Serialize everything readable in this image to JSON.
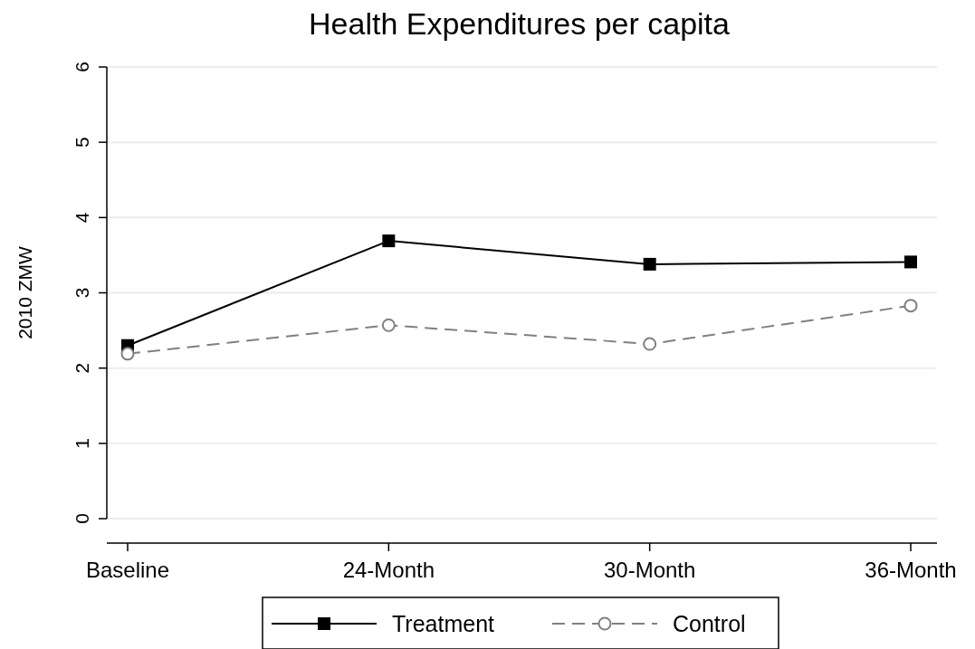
{
  "chart_data": {
    "type": "line",
    "title": "Health Expenditures per capita",
    "ylabel": "2010 ZMW",
    "categories": [
      "Baseline",
      "24-Month",
      "30-Month",
      "36-Month"
    ],
    "ylim": [
      0,
      6
    ],
    "yticks": [
      0,
      1,
      2,
      3,
      4,
      5,
      6
    ],
    "grid": "y",
    "legend": "bottom",
    "series": [
      {
        "name": "Treatment",
        "color": "#000000",
        "values": [
          2.3,
          3.69,
          3.38,
          3.41
        ],
        "marker": "square",
        "line_style": "solid"
      },
      {
        "name": "Control",
        "color": "#808080",
        "values": [
          2.19,
          2.57,
          2.32,
          2.83
        ],
        "marker": "circle",
        "line_style": "dashed"
      }
    ]
  }
}
